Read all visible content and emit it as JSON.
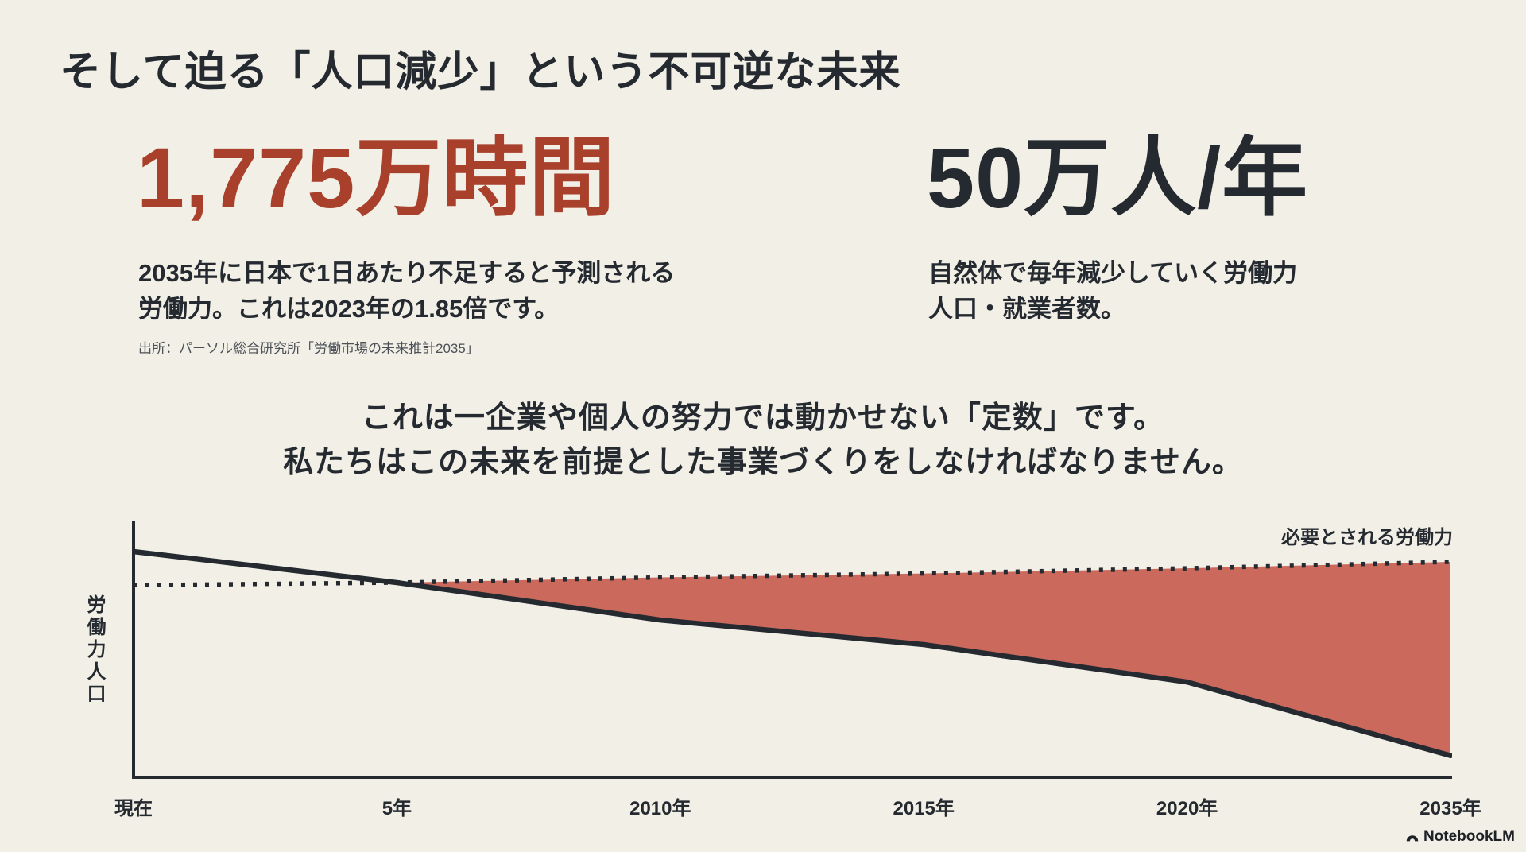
{
  "slide": {
    "title": "そして迫る「人口減少」という不可逆な未来",
    "stat_left": {
      "value": "1,775万時間",
      "desc_lines": [
        "2035年に日本で1日あたり不足すると予測される",
        "労働力。これは2023年の1.85倍です。"
      ],
      "source": "出所：パーソル総合研究所「労働市場の未来推計2035」"
    },
    "stat_right": {
      "value": "50万人/年",
      "desc_lines": [
        "自然体で毎年減少していく労働力",
        "人口・就業者数。"
      ]
    },
    "message_lines": [
      "これは一企業や個人の努力では動かせない「定数」です。",
      "私たちはこの未来を前提とした事業づくりをしなければなりません。"
    ],
    "footer_brand": "NotebookLM"
  },
  "colors": {
    "background": "#f1efe6",
    "text_dark": "#252a30",
    "accent_red": "#a8402c",
    "chart_line": "#252a30",
    "chart_fill": "#cb695c"
  },
  "chart_data": {
    "type": "area",
    "title": "",
    "xlabel": "",
    "ylabel": "労働力人口",
    "x_tick_labels": [
      "現在",
      "5年",
      "2010年",
      "2015年",
      "2020年",
      "2035年"
    ],
    "ylim": [
      0,
      100
    ],
    "grid": false,
    "legend_position": "none",
    "annotation": "必要とされる労働力",
    "series": [
      {
        "name": "労働力人口",
        "style": "solid",
        "values": [
          88,
          76,
          61.5,
          52,
          37.5,
          9
        ]
      },
      {
        "name": "必要とされる労働力",
        "style": "dotted",
        "values": [
          75,
          76,
          78,
          79.5,
          81.5,
          84
        ]
      }
    ],
    "fill_between": {
      "upper": "必要とされる労働力",
      "lower": "労働力人口",
      "color": "#cb695c"
    }
  }
}
